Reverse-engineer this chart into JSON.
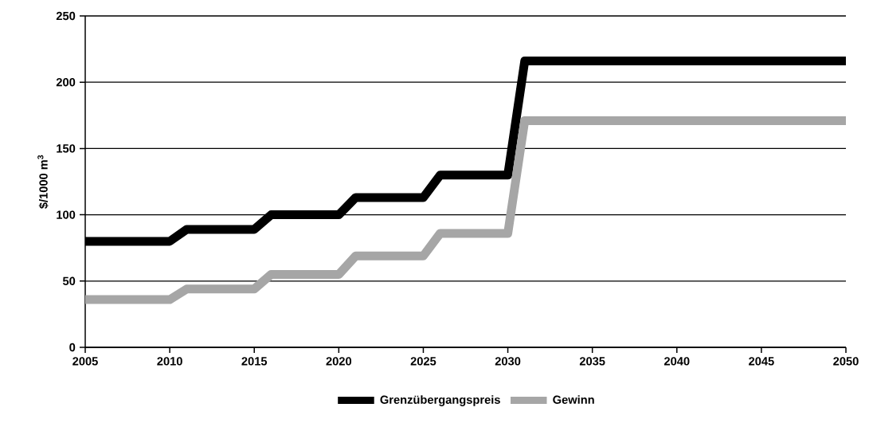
{
  "chart_data": {
    "type": "line",
    "ylabel": "$/1000 m$^{3}$",
    "x": [
      2005,
      2010,
      2011,
      2015,
      2016,
      2020,
      2021,
      2025,
      2026,
      2030,
      2031,
      2050
    ],
    "series": [
      {
        "name": "Grenzübergangspreis",
        "color": "#000000",
        "values": [
          80,
          80,
          89,
          89,
          100,
          100,
          113,
          113,
          130,
          130,
          216,
          216
        ]
      },
      {
        "name": "Gewinn",
        "color": "#a6a6a6",
        "values": [
          36,
          36,
          44,
          44,
          55,
          55,
          69,
          69,
          86,
          86,
          171,
          171
        ]
      }
    ],
    "xlim": [
      2005,
      2050
    ],
    "xticks": [
      2005,
      2010,
      2015,
      2020,
      2025,
      2030,
      2035,
      2040,
      2045,
      2050
    ],
    "ylim": [
      0,
      250
    ],
    "yticks": [
      0,
      50,
      100,
      150,
      200,
      250
    ],
    "grid": "y",
    "legend": "bottom",
    "marker": "none",
    "line_style": "solid"
  }
}
